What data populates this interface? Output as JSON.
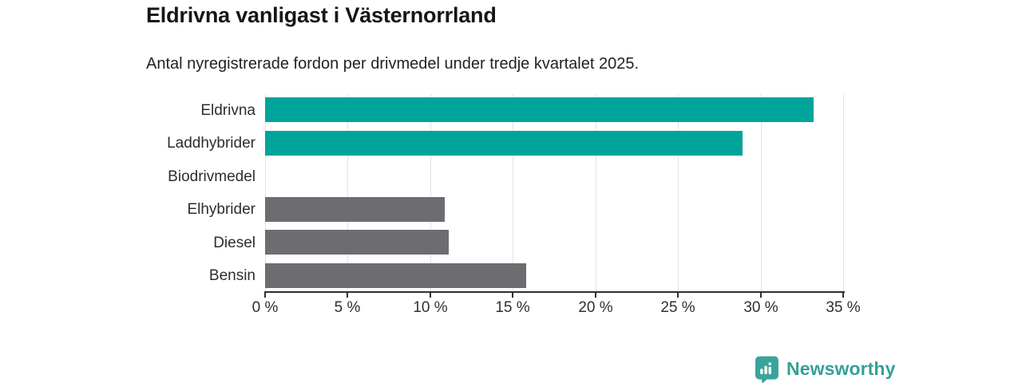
{
  "header": {
    "title": "Eldrivna vanligast i Västernorrland",
    "subtitle": "Antal nyregistrerade fordon per drivmedel under tredje kvartalet 2025."
  },
  "chart_data": {
    "type": "bar",
    "orientation": "horizontal",
    "title": "Eldrivna vanligast i Västernorrland",
    "subtitle": "Antal nyregistrerade fordon per drivmedel under tredje kvartalet 2025.",
    "categories": [
      "Eldrivna",
      "Laddhybrider",
      "Biodrivmedel",
      "Elhybrider",
      "Diesel",
      "Bensin"
    ],
    "values": [
      33.2,
      28.9,
      0,
      10.9,
      11.1,
      15.8
    ],
    "unit": "%",
    "bar_colors": [
      "#00a49b",
      "#00a49b",
      "#6c6c71",
      "#6c6c71",
      "#6c6c71",
      "#6c6c71"
    ],
    "highlight_color": "#00a49b",
    "default_color": "#6c6c71",
    "xlabel": "",
    "ylabel": "",
    "xlim": [
      0,
      35
    ],
    "x_ticks": [
      0,
      5,
      10,
      15,
      20,
      25,
      30,
      35
    ],
    "x_tick_labels": [
      "0 %",
      "5 %",
      "10 %",
      "15 %",
      "20 %",
      "25 %",
      "30 %",
      "35 %"
    ],
    "grid": "vertical",
    "legend": "none"
  },
  "branding": {
    "logo_text": "Newsworthy",
    "logo_icon": "bar-chart-pin-icon",
    "logo_text_color": "#35a095",
    "logo_icon_color": "#3aa49b"
  },
  "colors": {
    "background": "#ffffff",
    "gridline": "#e3e3e3",
    "axis": "#2f2f2f",
    "label_text": "#2d2d2d",
    "title_text": "#161616"
  }
}
